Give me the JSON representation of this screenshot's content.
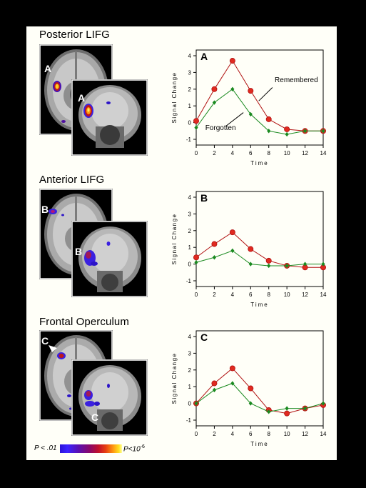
{
  "sections": [
    {
      "title": "Posterior LIFG",
      "brain_labels": [
        "A",
        "A"
      ],
      "chart_data": {
        "type": "line",
        "panel_label": "A",
        "x": [
          0,
          2,
          4,
          6,
          8,
          10,
          12,
          14
        ],
        "xlim": [
          0,
          14
        ],
        "ylim": [
          -1,
          4
        ],
        "xticks": [
          "0",
          "2",
          "4",
          "6",
          "8",
          "10",
          "12",
          "14"
        ],
        "yticks": [
          "-1",
          "0",
          "1",
          "2",
          "3",
          "4"
        ],
        "xlabel": "Time",
        "ylabel": "Signal Change",
        "series": [
          {
            "name": "Remembered",
            "color": "#b01010",
            "marker": "circle",
            "values": [
              0.1,
              2.0,
              3.7,
              1.9,
              0.2,
              -0.4,
              -0.5,
              -0.5
            ]
          },
          {
            "name": "Forgotten",
            "color": "#1a8a20",
            "marker": "diamond",
            "values": [
              -0.3,
              1.2,
              2.0,
              0.5,
              -0.5,
              -0.7,
              -0.5,
              -0.5
            ]
          }
        ]
      }
    },
    {
      "title": "Anterior LIFG",
      "brain_labels": [
        "B",
        "B"
      ],
      "chart_data": {
        "type": "line",
        "panel_label": "B",
        "x": [
          0,
          2,
          4,
          6,
          8,
          10,
          12,
          14
        ],
        "xlim": [
          0,
          14
        ],
        "ylim": [
          -1,
          4
        ],
        "xticks": [
          "0",
          "2",
          "4",
          "6",
          "8",
          "10",
          "12",
          "14"
        ],
        "yticks": [
          "-1",
          "0",
          "1",
          "2",
          "3",
          "4"
        ],
        "xlabel": "Time",
        "ylabel": "Signal Change",
        "series": [
          {
            "color": "#b01010",
            "marker": "circle",
            "values": [
              0.4,
              1.2,
              1.9,
              0.9,
              0.2,
              -0.1,
              -0.2,
              -0.2
            ]
          },
          {
            "color": "#1a8a20",
            "marker": "diamond",
            "values": [
              0.1,
              0.4,
              0.8,
              0.0,
              -0.1,
              -0.1,
              0.0,
              0.0
            ]
          }
        ]
      }
    },
    {
      "title": "Frontal Operculum",
      "brain_labels": [
        "C",
        "C"
      ],
      "chart_data": {
        "type": "line",
        "panel_label": "C",
        "x": [
          0,
          2,
          4,
          6,
          8,
          10,
          12,
          14
        ],
        "xlim": [
          0,
          14
        ],
        "ylim": [
          -1,
          4
        ],
        "xticks": [
          "0",
          "2",
          "4",
          "6",
          "8",
          "10",
          "12",
          "14"
        ],
        "yticks": [
          "-1",
          "0",
          "1",
          "2",
          "3",
          "4"
        ],
        "xlabel": "Time",
        "ylabel": "Signal Change",
        "series": [
          {
            "color": "#b01010",
            "marker": "circle",
            "values": [
              0.0,
              1.2,
              2.1,
              0.9,
              -0.4,
              -0.6,
              -0.3,
              -0.1
            ]
          },
          {
            "color": "#1a8a20",
            "marker": "diamond",
            "values": [
              0.0,
              0.8,
              1.2,
              0.0,
              -0.5,
              -0.3,
              -0.3,
              0.0
            ]
          }
        ]
      }
    }
  ],
  "colorbar": {
    "low_label": "P < .01",
    "high_label": "P<10",
    "high_exponent": "-6"
  }
}
